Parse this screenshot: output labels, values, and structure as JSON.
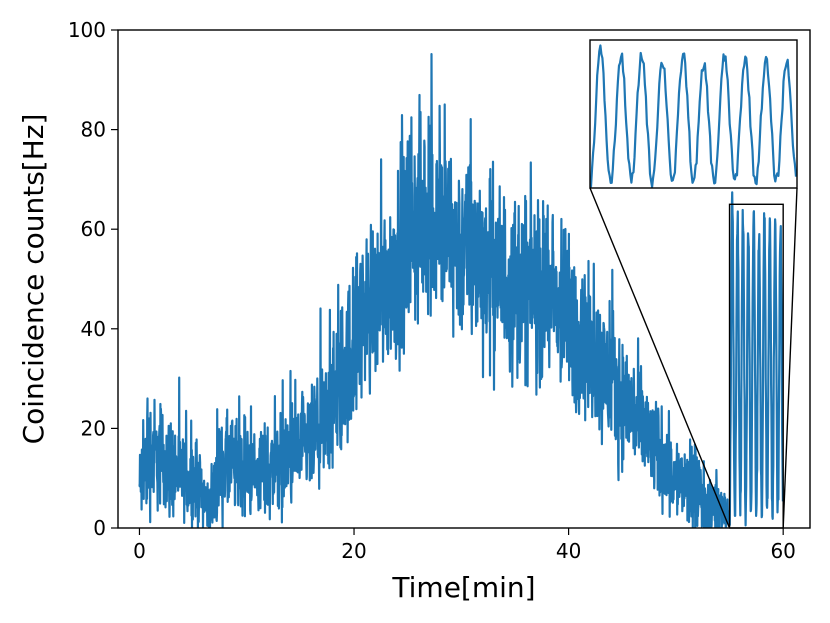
{
  "chart_data": {
    "type": "line",
    "title": "",
    "xlabel": "Time[min]",
    "ylabel": "Coincidence counts[Hz]",
    "xlim": [
      -2,
      62.5
    ],
    "ylim": [
      0,
      100
    ],
    "xticks": [
      0,
      20,
      40,
      60
    ],
    "yticks": [
      0,
      20,
      40,
      60,
      80,
      100
    ],
    "grid": false,
    "legend": "none",
    "color": "#1f77b4",
    "series": [
      {
        "x": [
          0,
          1,
          2,
          3,
          4,
          5,
          6,
          6.5,
          7,
          8,
          9,
          10,
          11,
          12,
          13,
          14,
          15,
          16,
          17,
          18,
          19,
          20,
          21,
          22,
          23,
          24,
          25,
          26,
          27,
          28,
          29,
          30,
          31,
          32,
          33,
          34,
          35,
          36,
          37,
          38,
          39,
          40,
          41,
          42,
          43,
          44,
          45,
          46,
          47,
          48,
          49,
          50,
          51,
          52,
          53,
          54,
          55
        ],
        "y": [
          8,
          15,
          14,
          12,
          10,
          9,
          7,
          3,
          8,
          12,
          12,
          11,
          11,
          12,
          13,
          14,
          15,
          17,
          19,
          24,
          30,
          37,
          43,
          46,
          49,
          53,
          58,
          62,
          63,
          60,
          58,
          56,
          55,
          53,
          52,
          50,
          49,
          49,
          48,
          46,
          44,
          41,
          38,
          35,
          32,
          29,
          26,
          23,
          19,
          16,
          13,
          10,
          8,
          6,
          5,
          4,
          3
        ],
        "noise": [
          4,
          6,
          5,
          5,
          4,
          4,
          3,
          2,
          4,
          5,
          5,
          4,
          4,
          5,
          5,
          5,
          5,
          5,
          6,
          7,
          8,
          8,
          8,
          8,
          8,
          9,
          10,
          10,
          10,
          10,
          9,
          9,
          9,
          9,
          9,
          9,
          9,
          9,
          9,
          8,
          8,
          8,
          8,
          7,
          7,
          7,
          6,
          6,
          6,
          5,
          5,
          4,
          4,
          4,
          3,
          3,
          2
        ]
      },
      {
        "x": [
          55,
          55.5,
          56,
          56.5,
          57,
          57.5,
          58,
          58.5,
          59,
          59.5,
          60
        ],
        "y_peak": [
          65,
          62,
          63,
          60,
          63,
          58,
          62,
          61,
          60,
          60,
          60
        ],
        "y_min": [
          2,
          3,
          3,
          3,
          3,
          3,
          3,
          3,
          3,
          3,
          3
        ]
      }
    ],
    "zoom_region": {
      "x": [
        55,
        60
      ],
      "y": [
        0,
        65
      ]
    }
  }
}
